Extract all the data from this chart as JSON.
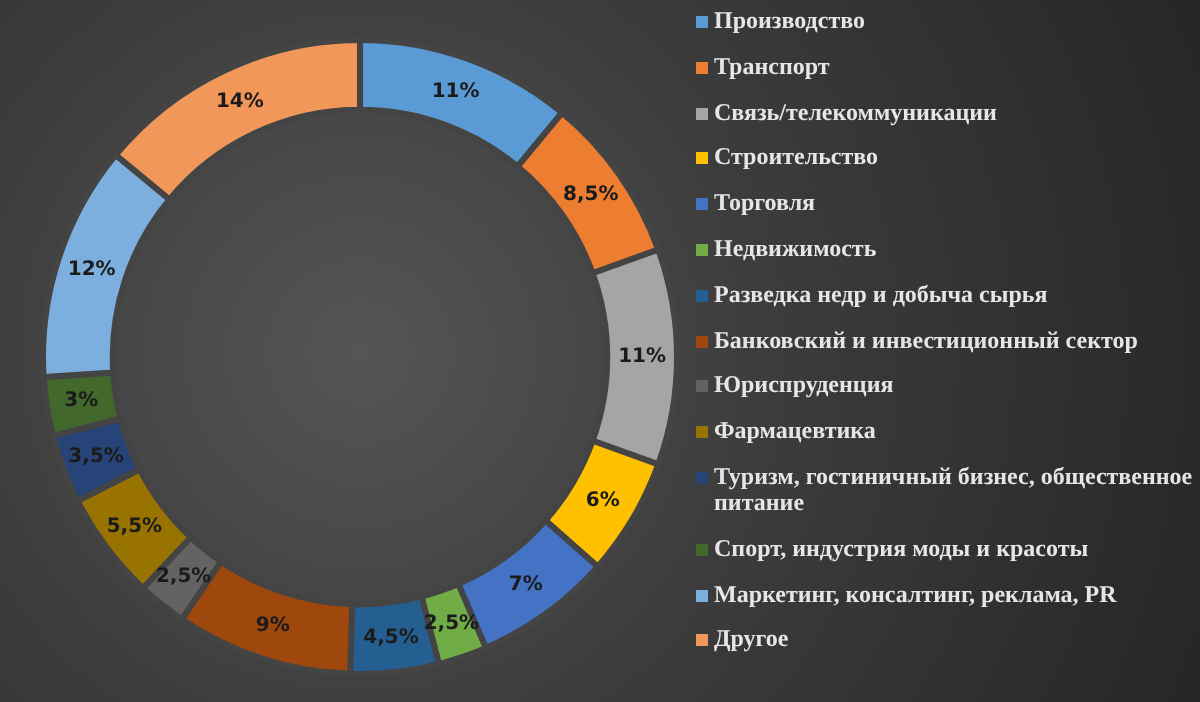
{
  "chart_data": {
    "type": "donut",
    "categories": [
      "Производство",
      "Транспорт",
      "Связь/телекоммуникации",
      "Строительство",
      "Торговля",
      "Недвижимость",
      "Разведка недр и добыча сырья",
      "Банковский и инвестиционный сектор",
      "Юриспруденция",
      "Фармацевтика",
      "Туризм, гостиничный бизнес, общественное питание",
      "Спорт, индустрия моды и красоты",
      "Маркетинг, консалтинг, реклама, PR",
      "Другое"
    ],
    "values": [
      11,
      8.5,
      11,
      6,
      7,
      2.5,
      4.5,
      9,
      2.5,
      5.5,
      3.5,
      3,
      12,
      14
    ],
    "value_labels": [
      "11%",
      "8,5%",
      "11%",
      "6%",
      "7%",
      "2,5%",
      "4,5%",
      "9%",
      "2,5%",
      "5,5%",
      "3,5%",
      "3%",
      "12%",
      "14%"
    ],
    "colors": [
      "#5b9bd5",
      "#ed7d31",
      "#a5a5a5",
      "#ffc000",
      "#4472c4",
      "#70ad47",
      "#255e91",
      "#9e480e",
      "#636363",
      "#997300",
      "#264478",
      "#43682b",
      "#7cafdd",
      "#f1975a"
    ],
    "legend": "right"
  }
}
